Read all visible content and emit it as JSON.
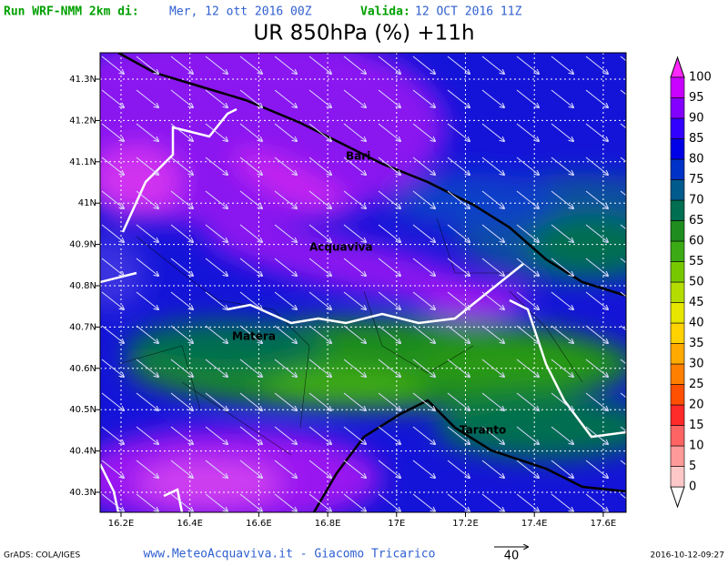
{
  "header": {
    "run_label": "Run WRF-NMM 2km di:",
    "run_date": "Mer, 12 ott 2016 00Z",
    "valid_label": "Valida:",
    "valid_date": "12 OCT 2016 11Z",
    "title": "UR 850hPa (%) +11h"
  },
  "map": {
    "lat_ticks": [
      "41.3N",
      "41.2N",
      "41.1N",
      "41N",
      "40.9N",
      "40.8N",
      "40.7N",
      "40.6N",
      "40.5N",
      "40.4N",
      "40.3N"
    ],
    "lon_ticks": [
      "16.2E",
      "16.4E",
      "16.6E",
      "16.8E",
      "17E",
      "17.2E",
      "17.4E",
      "17.6E"
    ],
    "cities": [
      "Bari",
      "Acquaviva",
      "Matera",
      "Taranto"
    ]
  },
  "colorbar": {
    "levels": [
      0,
      5,
      10,
      15,
      20,
      25,
      30,
      35,
      40,
      45,
      50,
      55,
      60,
      65,
      70,
      75,
      80,
      85,
      90,
      95,
      100
    ],
    "colors": [
      "#ffffff",
      "#ffc8c8",
      "#ff9a9a",
      "#ff6464",
      "#ff2a2a",
      "#ff5000",
      "#ff8000",
      "#ffaa00",
      "#ffd200",
      "#e6e600",
      "#b4dc00",
      "#78c800",
      "#3caa14",
      "#1e8c1e",
      "#006e50",
      "#005a8c",
      "#0032c8",
      "#0000e6",
      "#3200ff",
      "#8200ff",
      "#c800ff",
      "#ff28ff"
    ]
  },
  "footer": {
    "left": "GrADS: COLA/IGES",
    "center": "www.MeteoAcquaviva.it - Giacomo Tricarico",
    "vector_scale": "40",
    "right": "2016-10-12-09:27"
  }
}
